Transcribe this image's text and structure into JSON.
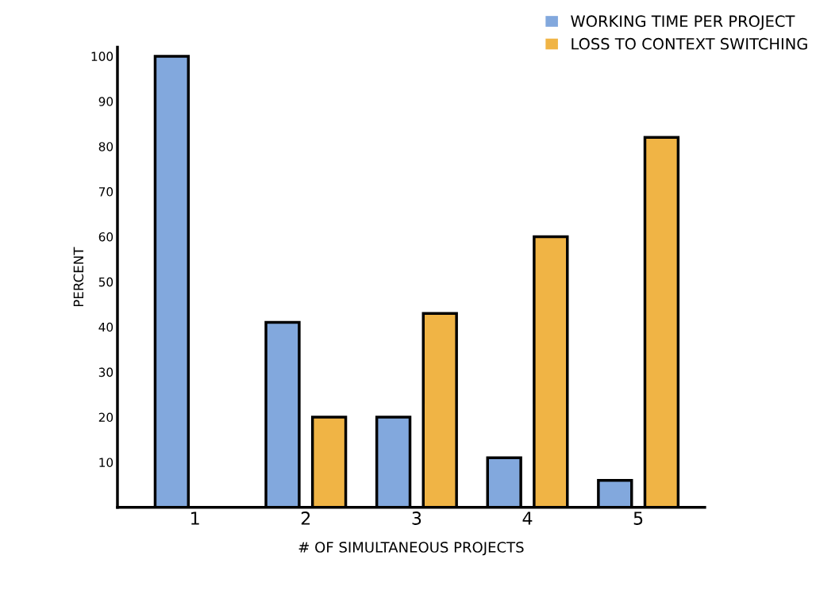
{
  "chart_data": {
    "type": "bar",
    "xlabel": "# OF SIMULTANEOUS PROJECTS",
    "ylabel": "PERCENT",
    "categories": [
      "1",
      "2",
      "3",
      "4",
      "5"
    ],
    "series": [
      {
        "name": "WORKING TIME PER PROJECT",
        "color": "#82a8dd",
        "values": [
          100,
          41,
          20,
          11,
          6
        ]
      },
      {
        "name": "LOSS TO CONTEXT SWITCHING",
        "color": "#f0b445",
        "values": [
          null,
          20,
          43,
          60,
          82
        ]
      }
    ],
    "ylim": [
      0,
      102
    ],
    "yticks": [
      10,
      20,
      30,
      40,
      50,
      60,
      70,
      80,
      90,
      100
    ],
    "grid": false,
    "legend": "top right"
  }
}
